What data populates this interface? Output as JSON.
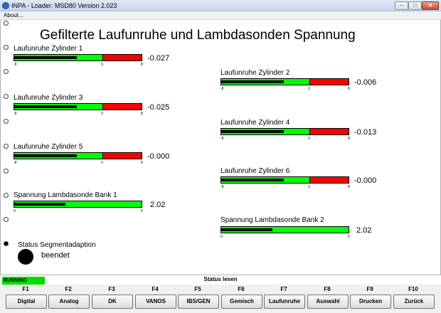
{
  "window": {
    "title": "INPA - Loader:  MSD80 Version 2.023",
    "min_glyph": "–",
    "max_glyph": "□",
    "close_glyph": "✕"
  },
  "menu": {
    "about": "About..."
  },
  "page": {
    "title": "Gefilterte Laufunruhe und Lambdasonden Spannung"
  },
  "gauges": [
    {
      "label": "Laufunruhe Zylinder 1",
      "min": "-8",
      "mid": "3",
      "max": "8",
      "value": "-0.027",
      "fill_fraction": 0.49
    },
    {
      "label": "Laufunruhe Zylinder 2",
      "min": "-8",
      "mid": "3",
      "max": "8",
      "value": "-0.006",
      "fill_fraction": 0.49
    },
    {
      "label": "Laufunruhe Zylinder 3",
      "min": "-8",
      "mid": "3",
      "max": "8",
      "value": "-0.025",
      "fill_fraction": 0.49
    },
    {
      "label": "Laufunruhe Zylinder 4",
      "min": "-8",
      "mid": "3",
      "max": "8",
      "value": "-0.013",
      "fill_fraction": 0.49
    },
    {
      "label": "Laufunruhe Zylinder 5",
      "min": "-8",
      "mid": "3",
      "max": "8",
      "value": "-0.000",
      "fill_fraction": 0.49
    },
    {
      "label": "Laufunruhe Zylinder 6",
      "min": "-8",
      "mid": "3",
      "max": "8",
      "value": "-0.000",
      "fill_fraction": 0.49
    },
    {
      "label": "Spannung Lambdasonde Bank 1",
      "min": "0",
      "mid": "",
      "max": "5",
      "value": "2.02",
      "fill_fraction": 0.4
    },
    {
      "label": "Spannung Lambdasonde Bank 2",
      "min": "0",
      "mid": "",
      "max": "5",
      "value": "2.02",
      "fill_fraction": 0.4
    }
  ],
  "status": {
    "label": "Status Segmentadaption",
    "value": "beendet"
  },
  "statusbar": {
    "running": "RUNNING",
    "center": "Status lesen"
  },
  "fkeys": [
    {
      "key": "F1",
      "label": "Digital"
    },
    {
      "key": "F2",
      "label": "Analog"
    },
    {
      "key": "F3",
      "label": "DK"
    },
    {
      "key": "F4",
      "label": "VANOS"
    },
    {
      "key": "F5",
      "label": "IBS/GEN"
    },
    {
      "key": "F6",
      "label": "Gemisch"
    },
    {
      "key": "F7",
      "label": "Laufunruhe"
    },
    {
      "key": "F8",
      "label": "Auswahl"
    },
    {
      "key": "F9",
      "label": "Drucken"
    },
    {
      "key": "F10",
      "label": "Zurück"
    }
  ]
}
